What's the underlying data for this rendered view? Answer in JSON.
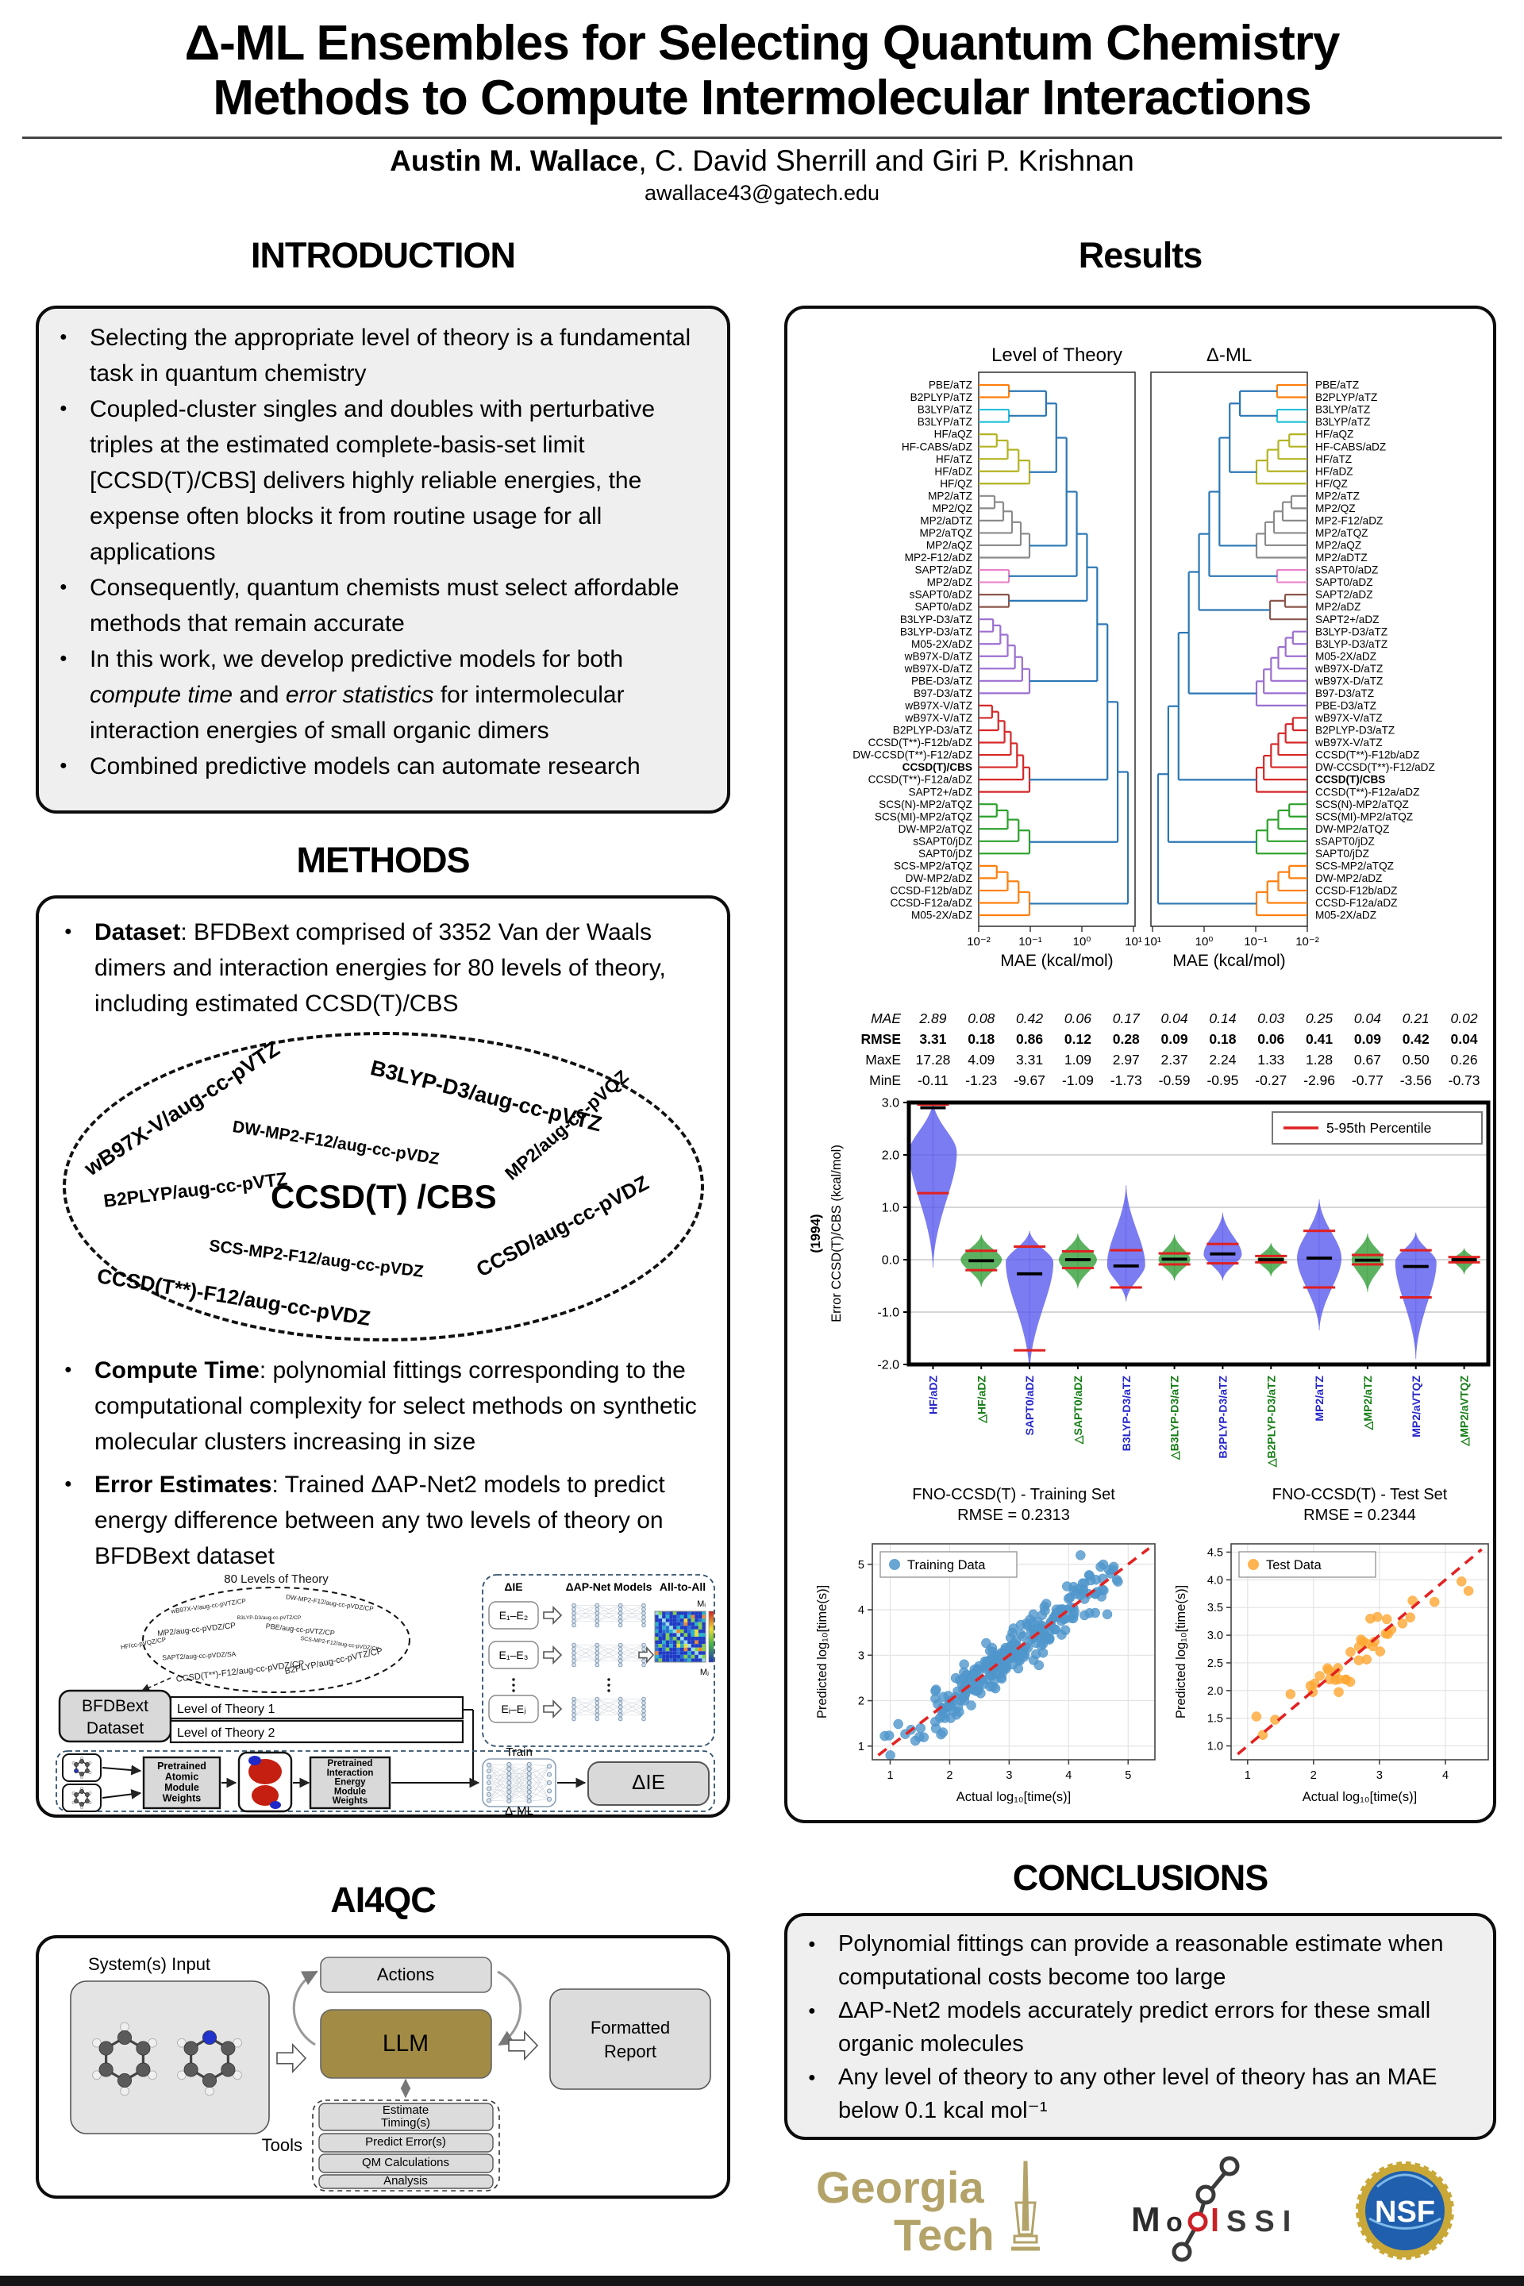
{
  "header": {
    "title_html": "Δ-ML Ensembles for Selecting Quantum Chemistry<br>Methods to Compute Intermolecular Interactions",
    "author_lead": "Austin M. Wallace",
    "authors_rest": ", C. David Sherrill and Giri P. Krishnan",
    "email": "awallace43@gatech.edu"
  },
  "sections": {
    "intro": "INTRODUCTION",
    "results": "Results",
    "methods": "METHODS",
    "ai4qc": "AI4QC",
    "conclusions": "CONCLUSIONS"
  },
  "intro": {
    "bullets": [
      "Selecting the appropriate level of theory is a fundamental task in quantum chemistry",
      "Coupled-cluster singles and doubles with perturbative triples at the estimated complete-basis-set limit [CCSD(T)/CBS] delivers highly reliable energies, the expense often blocks it from routine usage for all applications",
      "Consequently, quantum chemists must select affordable methods that remain accurate",
      "In this work, we develop predictive models for both <i>compute time</i> and <i>error statistics</i> for intermolecular interaction energies of small organic dimers",
      "Combined predictive models can automate research"
    ]
  },
  "methods": {
    "bullets1": [
      "<b>Dataset</b>: BFDBext comprised of 3352 Van der Waals dimers and interaction energies for 80 levels of theory, including estimated CCSD(T)/CBS"
    ],
    "bullets2": [
      "<b>Compute Time</b>: polynomial fittings corresponding to the computational complexity for select methods on synthetic molecular clusters increasing in size"
    ],
    "bullets3": [
      "<b>Error Estimates</b>: Trained ΔAP-Net2 models to predict energy difference between any two levels of theory on BFDBext dataset"
    ],
    "oval_center": "CCSD(T) /CBS",
    "oval_items": [
      "wB97X-V/aug-cc-pVTZ",
      "B3LYP-D3/aug-cc-pVTZ",
      "DW-MP2-F12/aug-cc-pVDZ",
      "B2PLYP/aug-cc-pVTZ",
      "SCS-MP2-F12/aug-cc-pVDZ",
      "MP2/aug-cc-pVQZ",
      "CCSD(T**)-F12/aug-cc-pVDZ",
      "CCSD/aug-cc-pVDZ"
    ]
  },
  "flow": {
    "caption": "80 Levels of Theory",
    "oval_items": [
      "wB97X-V/aug-cc-pVTZ/CP",
      "DW-MP2-F12/aug-cc-pVDZ/CP",
      "B3LYP-D3/aug-cc-pVTZ/CP",
      "MP2/aug-cc-pVDZ/CP",
      "PBE/aug-cc-pVTZ/CP",
      "HF/cc-pVQZ/CP",
      "SCS-MP2-F12/aug-cc-pVDZ/CP",
      "SAPT2/aug-cc-pVDZ/SA",
      "B2PLYP/aug-cc-pVTZ/CP",
      "CCSD(T**)-F12/aug-cc-pVDZ/CP"
    ],
    "dataset_lines": [
      "BFDBext",
      "Dataset"
    ],
    "lot1": "Level of Theory 1",
    "lot2": "Level of Theory 2",
    "col_ie": "ΔIE",
    "col_models": "ΔAP-Net Models",
    "col_all": "All-to-All",
    "e_boxes": [
      "E₁–E₂",
      "E₁–E₃",
      "Eᵢ–Eⱼ"
    ],
    "m_top": "Mᵢ",
    "m_bottom": "Mⱼ",
    "pre_atomic": [
      "Pretrained",
      "Atomic",
      "Module",
      "Weights"
    ],
    "pre_ie": [
      "Pretrained",
      "Interaction",
      "Energy",
      "Module",
      "Weights"
    ],
    "train": "Train",
    "dml": "Δ-ML",
    "die": "ΔIE"
  },
  "ai4qc": {
    "input_label": "System(s) Input",
    "actions": "Actions",
    "llm": "LLM",
    "llm_color": "#a28c45",
    "report_lines": [
      "Formatted",
      "Report"
    ],
    "tools_label": "Tools",
    "tools": [
      [
        "Estimate",
        "Timing(s)"
      ],
      [
        "Predict Error(s)"
      ],
      [
        "QM Calculations"
      ],
      [
        "Analysis"
      ]
    ]
  },
  "conclusions": {
    "bullets": [
      "Polynomial fittings can provide a reasonable estimate when computational costs become too large",
      "ΔAP-Net2 models accurately predict errors for these small organic molecules",
      "Any level of theory to any other level of theory has an MAE below 0.1 kcal mol⁻¹"
    ]
  },
  "logos": {
    "gt_top": "Georgia",
    "gt_bottom": "Tech",
    "gold": "#b3a369",
    "molssi_m": "M",
    "molssi_o": "o",
    "molssi_l": "l",
    "molssi_ssi": "SSI",
    "molssi_red": "#cc2027",
    "nsf": "NSF"
  },
  "chart_data": [
    {
      "type": "dendrogram",
      "title": "Level of Theory",
      "xlabel": "MAE (kcal/mol)",
      "xticks": [
        "10⁻²",
        "10⁻¹",
        "10⁰",
        "10¹"
      ],
      "root": "right",
      "leaves": [
        {
          "l": "PBE/aTZ",
          "c": "orange"
        },
        {
          "l": "B2PLYP/aTZ",
          "c": "orange"
        },
        {
          "l": "B3LYP/aTZ",
          "c": "cyan"
        },
        {
          "l": "B3LYP/aTZ",
          "c": "cyan"
        },
        {
          "l": "HF/aQZ",
          "c": "olive"
        },
        {
          "l": "HF-CABS/aDZ",
          "c": "olive"
        },
        {
          "l": "HF/aTZ",
          "c": "olive"
        },
        {
          "l": "HF/aDZ",
          "c": "olive"
        },
        {
          "l": "HF/QZ",
          "c": "olive"
        },
        {
          "l": "MP2/aTZ",
          "c": "gray"
        },
        {
          "l": "MP2/QZ",
          "c": "gray"
        },
        {
          "l": "MP2/aDTZ",
          "c": "gray"
        },
        {
          "l": "MP2/aTQZ",
          "c": "gray"
        },
        {
          "l": "MP2/aQZ",
          "c": "gray"
        },
        {
          "l": "MP2-F12/aDZ",
          "c": "gray"
        },
        {
          "l": "SAPT2/aDZ",
          "c": "pink"
        },
        {
          "l": "MP2/aDZ",
          "c": "pink"
        },
        {
          "l": "sSAPT0/aDZ",
          "c": "brown"
        },
        {
          "l": "SAPT0/aDZ",
          "c": "brown"
        },
        {
          "l": "B3LYP-D3/aTZ",
          "c": "purple"
        },
        {
          "l": "B3LYP-D3/aTZ",
          "c": "purple"
        },
        {
          "l": "M05-2X/aDZ",
          "c": "purple"
        },
        {
          "l": "wB97X-D/aTZ",
          "c": "purple"
        },
        {
          "l": "wB97X-D/aTZ",
          "c": "purple"
        },
        {
          "l": "PBE-D3/aTZ",
          "c": "purple"
        },
        {
          "l": "B97-D3/aTZ",
          "c": "purple"
        },
        {
          "l": "wB97X-V/aTZ",
          "c": "red"
        },
        {
          "l": "wB97X-V/aTZ",
          "c": "red"
        },
        {
          "l": "B2PLYP-D3/aTZ",
          "c": "red"
        },
        {
          "l": "CCSD(T**)-F12b/aDZ",
          "c": "red"
        },
        {
          "l": "DW-CCSD(T**)-F12/aDZ",
          "c": "red"
        },
        {
          "l": "CCSD(T)/CBS",
          "c": "red",
          "b": true
        },
        {
          "l": "CCSD(T**)-F12a/aDZ",
          "c": "red"
        },
        {
          "l": "SAPT2+/aDZ",
          "c": "red"
        },
        {
          "l": "SCS(N)-MP2/aTQZ",
          "c": "green"
        },
        {
          "l": "SCS(MI)-MP2/aTQZ",
          "c": "green"
        },
        {
          "l": "DW-MP2/aTQZ",
          "c": "green"
        },
        {
          "l": "sSAPT0/jDZ",
          "c": "green"
        },
        {
          "l": "SAPT0/jDZ",
          "c": "green"
        },
        {
          "l": "SCS-MP2/aTQZ",
          "c": "orange"
        },
        {
          "l": "DW-MP2/aDZ",
          "c": "orange"
        },
        {
          "l": "CCSD-F12b/aDZ",
          "c": "orange"
        },
        {
          "l": "CCSD-F12a/aDZ",
          "c": "orange"
        },
        {
          "l": "M05-2X/aDZ",
          "c": "orange"
        }
      ]
    },
    {
      "type": "dendrogram",
      "title": "Δ-ML",
      "xlabel": "MAE (kcal/mol)",
      "xticks": [
        "10¹",
        "10⁰",
        "10⁻¹",
        "10⁻²"
      ],
      "root": "left",
      "leaves": [
        {
          "l": "PBE/aTZ",
          "c": "orange"
        },
        {
          "l": "B2PLYP/aTZ",
          "c": "orange"
        },
        {
          "l": "B3LYP/aTZ",
          "c": "cyan"
        },
        {
          "l": "B3LYP/aTZ",
          "c": "cyan"
        },
        {
          "l": "HF/aQZ",
          "c": "olive"
        },
        {
          "l": "HF-CABS/aDZ",
          "c": "olive"
        },
        {
          "l": "HF/aTZ",
          "c": "olive"
        },
        {
          "l": "HF/aDZ",
          "c": "olive"
        },
        {
          "l": "HF/QZ",
          "c": "olive"
        },
        {
          "l": "MP2/aTZ",
          "c": "gray"
        },
        {
          "l": "MP2/QZ",
          "c": "gray"
        },
        {
          "l": "MP2-F12/aDZ",
          "c": "gray"
        },
        {
          "l": "MP2/aTQZ",
          "c": "gray"
        },
        {
          "l": "MP2/aQZ",
          "c": "gray"
        },
        {
          "l": "MP2/aDTZ",
          "c": "gray"
        },
        {
          "l": "sSAPT0/aDZ",
          "c": "pink"
        },
        {
          "l": "SAPT0/aDZ",
          "c": "pink"
        },
        {
          "l": "SAPT2/aDZ",
          "c": "brown"
        },
        {
          "l": "MP2/aDZ",
          "c": "brown"
        },
        {
          "l": "SAPT2+/aDZ",
          "c": "brown"
        },
        {
          "l": "B3LYP-D3/aTZ",
          "c": "purple"
        },
        {
          "l": "B3LYP-D3/aTZ",
          "c": "purple"
        },
        {
          "l": "M05-2X/aDZ",
          "c": "purple"
        },
        {
          "l": "wB97X-D/aTZ",
          "c": "purple"
        },
        {
          "l": "wB97X-D/aTZ",
          "c": "purple"
        },
        {
          "l": "B97-D3/aTZ",
          "c": "purple"
        },
        {
          "l": "PBE-D3/aTZ",
          "c": "purple"
        },
        {
          "l": "wB97X-V/aTZ",
          "c": "red"
        },
        {
          "l": "B2PLYP-D3/aTZ",
          "c": "red"
        },
        {
          "l": "wB97X-V/aTZ",
          "c": "red"
        },
        {
          "l": "CCSD(T**)-F12b/aDZ",
          "c": "red"
        },
        {
          "l": "DW-CCSD(T**)-F12/aDZ",
          "c": "red"
        },
        {
          "l": "CCSD(T)/CBS",
          "c": "red",
          "b": true
        },
        {
          "l": "CCSD(T**)-F12a/aDZ",
          "c": "red"
        },
        {
          "l": "SCS(N)-MP2/aTQZ",
          "c": "green"
        },
        {
          "l": "SCS(MI)-MP2/aTQZ",
          "c": "green"
        },
        {
          "l": "DW-MP2/aTQZ",
          "c": "green"
        },
        {
          "l": "sSAPT0/jDZ",
          "c": "green"
        },
        {
          "l": "SAPT0/jDZ",
          "c": "green"
        },
        {
          "l": "SCS-MP2/aTQZ",
          "c": "orange"
        },
        {
          "l": "DW-MP2/aDZ",
          "c": "orange"
        },
        {
          "l": "CCSD-F12b/aDZ",
          "c": "orange"
        },
        {
          "l": "CCSD-F12a/aDZ",
          "c": "orange"
        },
        {
          "l": "M05-2X/aDZ",
          "c": "orange"
        }
      ]
    },
    {
      "type": "violin",
      "ylabel": "Error CCSD(T)/CBS (kcal/mol)",
      "ylabel2": "(1994)",
      "ylim": [
        -2,
        3
      ],
      "yticks": [
        "3.0",
        "2.0",
        "1.0",
        "0.0",
        "-1.0",
        "-2.0"
      ],
      "gridlines": [
        2,
        1,
        0,
        -1
      ],
      "legend": "5-95th Percentile",
      "legend_color": "#e02020",
      "stats": [
        {
          "label": "MAE",
          "style": "italic",
          "values": [
            "2.89",
            "0.08",
            "0.42",
            "0.06",
            "0.17",
            "0.04",
            "0.14",
            "0.03",
            "0.25",
            "0.04",
            "0.21",
            "0.02"
          ]
        },
        {
          "label": "RMSE",
          "style": "bold",
          "values": [
            "3.31",
            "0.18",
            "0.86",
            "0.12",
            "0.28",
            "0.09",
            "0.18",
            "0.06",
            "0.41",
            "0.09",
            "0.42",
            "0.04"
          ]
        },
        {
          "label": "MaxE",
          "style": "serif",
          "values": [
            "17.28",
            "4.09",
            "3.31",
            "1.09",
            "2.97",
            "2.37",
            "2.24",
            "1.33",
            "1.28",
            "0.67",
            "0.50",
            "0.26"
          ]
        },
        {
          "label": "MinE",
          "style": "serif",
          "values": [
            "-0.11",
            "-1.23",
            "-9.67",
            "-1.09",
            "-1.73",
            "-0.59",
            "-0.95",
            "-0.27",
            "-2.96",
            "-0.77",
            "-3.56",
            "-0.73"
          ]
        }
      ],
      "violins": [
        {
          "label": "HF/aDZ",
          "color": "blue",
          "top": 3.02,
          "bottom": -0.15,
          "mode": 2.05,
          "half": 30,
          "median": 2.9,
          "p_hi": 2.96,
          "p_lo": 1.27
        },
        {
          "label": "△HF/aDZ",
          "color": "green",
          "top": 0.48,
          "bottom": -0.52,
          "mode": 0.0,
          "half": 26,
          "median": -0.02,
          "p_hi": 0.17,
          "p_lo": -0.2
        },
        {
          "label": "SAPT0/aDZ",
          "color": "blue",
          "top": 0.55,
          "bottom": -2.15,
          "mode": -0.05,
          "half": 30,
          "median": -0.27,
          "p_hi": 0.25,
          "p_lo": -1.73
        },
        {
          "label": "△SAPT0/aDZ",
          "color": "green",
          "top": 0.5,
          "bottom": -0.55,
          "mode": 0.0,
          "half": 24,
          "median": 0.0,
          "p_hi": 0.16,
          "p_lo": -0.16
        },
        {
          "label": "B3LYP-D3/aTZ",
          "color": "blue",
          "top": 1.42,
          "bottom": -0.8,
          "mode": -0.1,
          "half": 24,
          "median": -0.12,
          "p_hi": 0.18,
          "p_lo": -0.53
        },
        {
          "label": "△B3LYP-D3/aTZ",
          "color": "green",
          "top": 0.48,
          "bottom": -0.4,
          "mode": 0.0,
          "half": 20,
          "median": 0.01,
          "p_hi": 0.12,
          "p_lo": -0.09
        },
        {
          "label": "B2PLYP-D3/aTZ",
          "color": "blue",
          "top": 0.9,
          "bottom": -0.4,
          "mode": 0.1,
          "half": 24,
          "median": 0.11,
          "p_hi": 0.3,
          "p_lo": -0.07
        },
        {
          "label": "△B2PLYP-D3/aTZ",
          "color": "green",
          "top": 0.32,
          "bottom": -0.32,
          "mode": 0.0,
          "half": 17,
          "median": 0.0,
          "p_hi": 0.07,
          "p_lo": -0.05
        },
        {
          "label": "MP2/aTZ",
          "color": "blue",
          "top": 1.15,
          "bottom": -1.35,
          "mode": 0.03,
          "half": 28,
          "median": 0.03,
          "p_hi": 0.55,
          "p_lo": -0.53
        },
        {
          "label": "△MP2/aTZ",
          "color": "green",
          "top": 0.5,
          "bottom": -0.62,
          "mode": 0.0,
          "half": 20,
          "median": -0.01,
          "p_hi": 0.09,
          "p_lo": -0.09
        },
        {
          "label": "MP2/aVTQZ",
          "color": "blue",
          "top": 0.52,
          "bottom": -1.9,
          "mode": -0.05,
          "half": 26,
          "median": -0.13,
          "p_hi": 0.18,
          "p_lo": -0.72
        },
        {
          "label": "△MP2/aVTQZ",
          "color": "green",
          "top": 0.22,
          "bottom": -0.28,
          "mode": 0.0,
          "half": 14,
          "median": 0.0,
          "p_hi": 0.05,
          "p_lo": -0.05
        }
      ]
    },
    {
      "type": "scatter",
      "title": "FNO-CCSD(T) - Training Set",
      "subtitle": "RMSE = 0.2313",
      "legend": "Training Data",
      "color": "#4f96cc",
      "xlabel": "Actual log₁₀[time(s)]",
      "ylabel": "Predicted log₁₀[time(s)]",
      "xlim": [
        0.7,
        5.45
      ],
      "ylim": [
        0.7,
        5.45
      ],
      "xticks": [
        "1",
        "2",
        "3",
        "4",
        "5"
      ],
      "yticks": [
        "1",
        "2",
        "3",
        "4",
        "5"
      ],
      "n": 270,
      "seed": 7,
      "noise": 0.24,
      "outliers": [
        [
          4.2,
          5.2
        ],
        [
          4.65,
          3.9
        ],
        [
          3.5,
          2.78
        ]
      ]
    },
    {
      "type": "scatter",
      "title": "FNO-CCSD(T) - Test Set",
      "subtitle": "RMSE = 0.2344",
      "legend": "Test Data",
      "color": "#ffa733",
      "xlabel": "Actual log₁₀[time(s)]",
      "ylabel": "Predicted log₁₀[time(s)]",
      "xlim": [
        0.75,
        4.65
      ],
      "ylim": [
        0.75,
        4.65
      ],
      "xticks": [
        "1",
        "2",
        "3",
        "4"
      ],
      "yticks": [
        "1.0",
        "1.5",
        "2.0",
        "2.5",
        "3.0",
        "3.5",
        "4.0",
        "4.5"
      ],
      "n": 40,
      "seed": 11,
      "noise": 0.2,
      "outliers": [
        [
          4.35,
          3.8
        ]
      ]
    }
  ]
}
